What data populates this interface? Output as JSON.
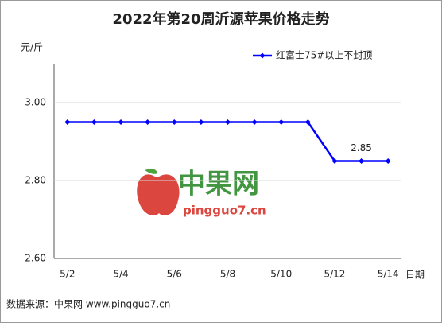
{
  "chart_data": {
    "type": "line",
    "title": "2022年第20周沂源苹果价格走势",
    "y_label": "元/斤",
    "x_label": "日期",
    "categories": [
      "5/2",
      null,
      "5/4",
      null,
      "5/6",
      null,
      "5/8",
      null,
      "5/10",
      null,
      "5/12",
      null,
      "5/14"
    ],
    "series": [
      {
        "name": "红富士75#以上不封顶",
        "color": "#0000ff",
        "values": [
          2.95,
          2.95,
          2.95,
          2.95,
          2.95,
          2.95,
          2.95,
          2.95,
          2.95,
          2.95,
          2.85,
          2.85,
          2.85
        ],
        "value_labels": [
          null,
          null,
          null,
          null,
          null,
          null,
          null,
          null,
          null,
          null,
          null,
          "2.85",
          null
        ]
      }
    ],
    "ylim": [
      2.6,
      3.1
    ],
    "yticks": [
      {
        "value": 2.6,
        "label": "2.60"
      },
      {
        "value": 2.8,
        "label": "2.80"
      },
      {
        "value": 3.0,
        "label": "3.00"
      }
    ],
    "grid": true,
    "legend": "top-right"
  },
  "watermark": {
    "title": "中果网",
    "url": "pingguo7.cn"
  },
  "source": "数据来源：中果网 www.pingguo7.cn"
}
